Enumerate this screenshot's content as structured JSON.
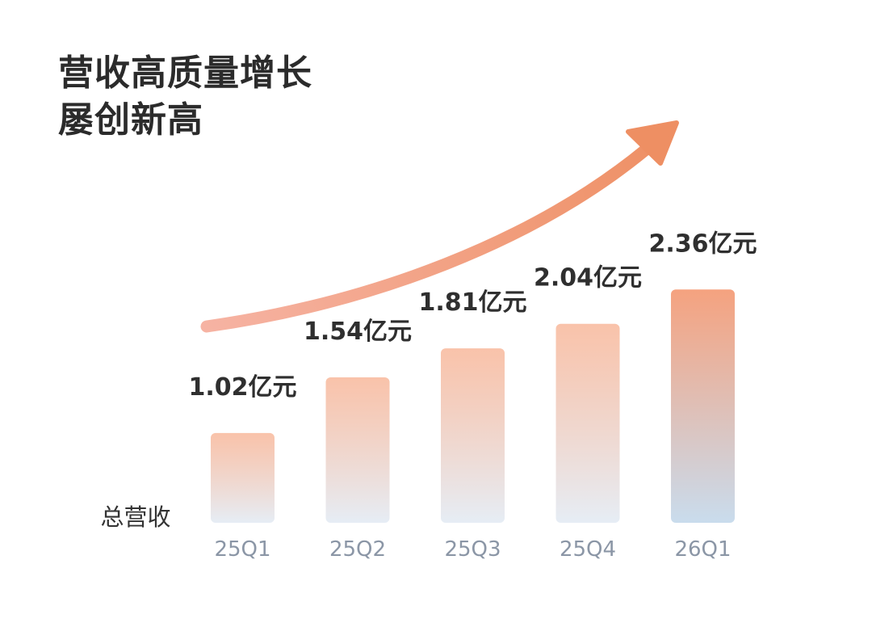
{
  "title": {
    "line1": "营收高质量增长",
    "line2": "屡创新高"
  },
  "chart_data": {
    "type": "bar",
    "categories": [
      "25Q1",
      "25Q2",
      "25Q3",
      "25Q4",
      "26Q1"
    ],
    "values": [
      1.02,
      1.54,
      1.81,
      2.04,
      2.36
    ],
    "value_labels": [
      "1.02亿元",
      "1.54亿元",
      "1.81亿元",
      "2.04亿元",
      "2.36亿元"
    ],
    "unit": "亿元",
    "ylabel": "总营收",
    "xlabel": "",
    "grid": false,
    "legend": "none",
    "trend_arrow": true,
    "colors": {
      "bar_top": "#f8b89b",
      "bar_bottom": "#e6edf5",
      "bar_top_last": "#f5a27f",
      "bar_bottom_last": "#c9dced",
      "arrow_start": "#f6b3a3",
      "arrow_end": "#ee8f63"
    }
  }
}
